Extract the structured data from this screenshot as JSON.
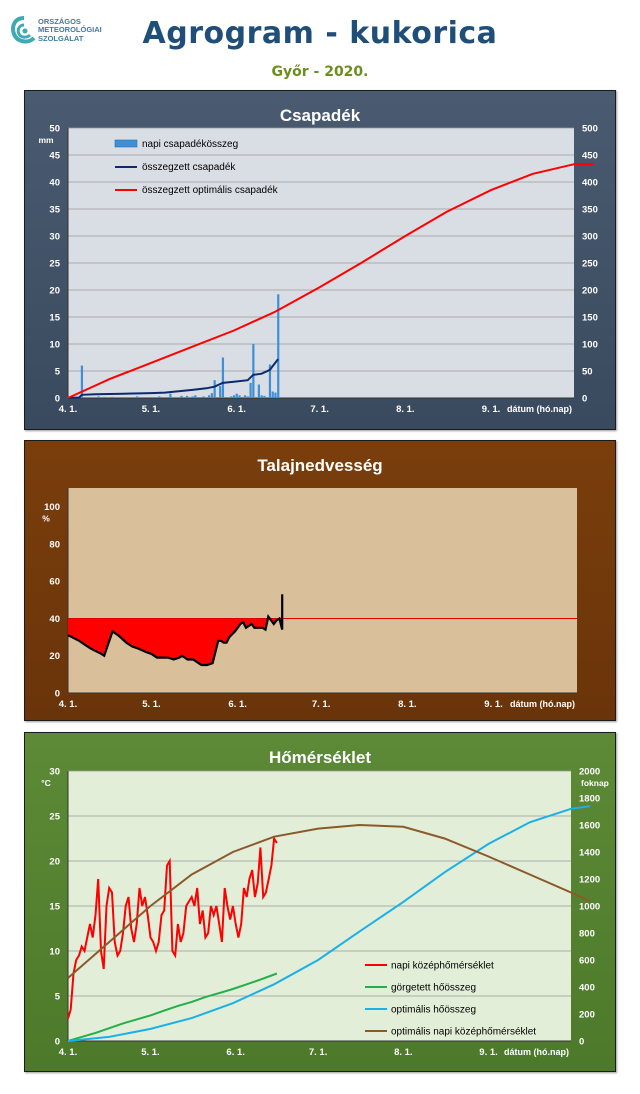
{
  "header": {
    "title": "Agrogram - kukorica",
    "subtitle": "Győr - 2020.",
    "logo_lines": [
      "ORSZÁGOS",
      "METEOROLÓGIAI",
      "SZOLGÁLAT"
    ]
  },
  "colors": {
    "title_blue": "#1f4e79",
    "subtitle_green": "#6a8f1e",
    "panel_precip": "#44546a",
    "panel_soil": "#7a3e0c",
    "panel_temp": "#548235",
    "daily_bar": "#3d8fd6",
    "cum_line": "#0b2a6f",
    "opt_line_red": "#ff0000",
    "soil_line": "#000000",
    "temp_red": "#ff0000",
    "temp_green": "#22b04a",
    "temp_cyan": "#1ab0e8",
    "temp_brown": "#8b5a2b"
  },
  "chart_data": [
    {
      "type": "bar",
      "title": "Csapadék",
      "xlabel": "dátum (hó.nap)",
      "ylabel": "mm",
      "x_ticks": [
        "4. 1.",
        "5. 1.",
        "6. 1.",
        "7. 1.",
        "8. 1.",
        "9. 1."
      ],
      "ylim": [
        0,
        50
      ],
      "y_ticks": [
        0,
        5,
        10,
        15,
        20,
        25,
        30,
        35,
        40,
        45,
        50
      ],
      "y2lim": [
        0,
        500
      ],
      "y2_ticks": [
        0,
        50,
        100,
        150,
        200,
        250,
        300,
        350,
        400,
        450,
        500
      ],
      "grid": true,
      "legend_position": "top-left",
      "series": [
        {
          "name": "napi csapadékösszeg",
          "kind": "bar",
          "axis": "left",
          "x": [
            0,
            5,
            11,
            13,
            16,
            25,
            33,
            37,
            41,
            43,
            45,
            46,
            49,
            51,
            52,
            53,
            55,
            56,
            59,
            60,
            61,
            62,
            63,
            64,
            65,
            66,
            67,
            69,
            70,
            71,
            73,
            74,
            75,
            76
          ],
          "values": [
            0.1,
            6.0,
            0.3,
            0.2,
            0.2,
            0.3,
            0.3,
            0.8,
            0.4,
            0.4,
            0.3,
            0.5,
            0.3,
            0.5,
            0.9,
            3.3,
            2.2,
            7.5,
            0.3,
            0.5,
            0.8,
            0.5,
            0.2,
            0.5,
            0.3,
            2.8,
            10.0,
            2.5,
            0.5,
            0.4,
            6.2,
            1.2,
            1.0,
            19.2
          ]
        },
        {
          "name": "összegzett csapadék",
          "kind": "line",
          "axis": "left",
          "x": [
            0,
            4,
            5,
            10,
            20,
            30,
            35,
            45,
            50,
            53,
            56,
            60,
            65,
            67,
            70,
            73,
            76
          ],
          "values": [
            0,
            0.1,
            0.6,
            0.7,
            0.8,
            0.9,
            1.0,
            1.5,
            1.8,
            2.1,
            2.8,
            3.0,
            3.3,
            4.3,
            4.5,
            5.2,
            7.2
          ]
        },
        {
          "name": "összegzett optimális csapadék",
          "kind": "line",
          "axis": "right",
          "x": [
            0,
            15,
            30,
            45,
            60,
            75,
            91,
            106,
            122,
            137,
            153,
            168,
            183,
            190
          ],
          "values": [
            0,
            35,
            65,
            95,
            125,
            160,
            205,
            250,
            300,
            345,
            385,
            415,
            433,
            433
          ]
        }
      ]
    },
    {
      "type": "area",
      "title": "Talajnedvesség",
      "xlabel": "dátum (hó.nap)",
      "ylabel": "%",
      "x_ticks": [
        "4. 1.",
        "5. 1.",
        "6. 1.",
        "7. 1.",
        "8. 1.",
        "9. 1."
      ],
      "ylim": [
        0,
        110
      ],
      "y_ticks": [
        0,
        20,
        40,
        60,
        80,
        100
      ],
      "grid": false,
      "threshold": 40,
      "series": [
        {
          "name": "",
          "x": [
            0,
            4,
            8,
            12,
            13,
            16,
            18,
            21,
            23,
            25,
            28,
            30,
            32,
            34,
            36,
            38,
            40,
            41,
            43,
            45,
            47,
            48,
            50,
            52,
            54,
            55,
            56,
            57,
            58,
            60,
            62,
            63,
            64,
            66,
            67,
            68,
            70,
            71,
            72,
            74,
            75,
            76,
            77
          ],
          "values": [
            31,
            28,
            24,
            21,
            20,
            33,
            31,
            27,
            25,
            24,
            22,
            21,
            19,
            19,
            19,
            18,
            19,
            20,
            18,
            18,
            16,
            15,
            15,
            16,
            28,
            28,
            27,
            27,
            30,
            33,
            37,
            38,
            35,
            37,
            35,
            35,
            35,
            34,
            41,
            37,
            39,
            40,
            34
          ]
        }
      ],
      "end_value": 53
    },
    {
      "type": "line",
      "title": "Hőmérséklet",
      "xlabel": "dátum (hó.nap)",
      "ylabel": "°C",
      "y2label": "foknap",
      "x_ticks": [
        "4. 1.",
        "5. 1.",
        "6. 1.",
        "7. 1.",
        "8. 1.",
        "9. 1."
      ],
      "ylim": [
        0,
        30
      ],
      "y_ticks": [
        0,
        5,
        10,
        15,
        20,
        25,
        30
      ],
      "y2lim": [
        0,
        2000
      ],
      "y2_ticks": [
        0,
        200,
        400,
        600,
        800,
        1000,
        1200,
        1400,
        1600,
        1800,
        2000
      ],
      "grid": true,
      "legend_position": "bottom-right",
      "series": [
        {
          "name": "napi középhőmérséklet",
          "axis": "left",
          "x": [
            0,
            1,
            2,
            3,
            4,
            5,
            6,
            7,
            8,
            9,
            10,
            11,
            12,
            13,
            14,
            15,
            16,
            17,
            18,
            19,
            20,
            21,
            22,
            23,
            24,
            25,
            26,
            27,
            28,
            29,
            30,
            31,
            32,
            33,
            34,
            35,
            36,
            37,
            38,
            39,
            40,
            41,
            42,
            43,
            44,
            45,
            46,
            47,
            48,
            49,
            50,
            51,
            52,
            53,
            54,
            55,
            56,
            57,
            58,
            59,
            60,
            61,
            62,
            63,
            64,
            65,
            66,
            67,
            68,
            69,
            70,
            71,
            72,
            73,
            74,
            75,
            76
          ],
          "values": [
            2.5,
            3.5,
            7.5,
            9,
            9.5,
            10.5,
            10,
            11.5,
            13,
            11.5,
            14,
            18,
            10,
            8,
            15,
            17,
            16.5,
            11,
            9.5,
            10,
            12,
            15,
            16,
            12.5,
            11,
            13,
            17,
            15,
            16,
            14,
            11.5,
            11,
            10,
            11,
            14,
            14.5,
            19.5,
            20,
            10,
            9.5,
            13,
            11,
            12,
            15,
            15.5,
            16,
            15,
            17,
            13,
            14.5,
            11.5,
            12,
            15,
            14,
            15,
            13,
            11,
            17,
            15,
            13.5,
            15,
            13,
            11.5,
            13,
            17,
            16,
            18,
            19,
            16,
            17.5,
            21.5,
            16,
            16.5,
            18,
            19.5,
            22.5,
            22
          ]
        },
        {
          "name": "görgetett hőösszeg",
          "axis": "right",
          "x": [
            0,
            5,
            10,
            15,
            20,
            25,
            30,
            35,
            40,
            45,
            50,
            55,
            60,
            65,
            70,
            76
          ],
          "values": [
            0,
            30,
            60,
            95,
            130,
            160,
            190,
            225,
            260,
            290,
            325,
            355,
            385,
            420,
            455,
            500
          ]
        },
        {
          "name": "optimális hőösszeg",
          "axis": "right",
          "x": [
            0,
            15,
            30,
            45,
            60,
            75,
            91,
            106,
            122,
            137,
            153,
            168,
            183,
            190
          ],
          "values": [
            0,
            30,
            90,
            170,
            280,
            420,
            600,
            810,
            1030,
            1250,
            1460,
            1620,
            1720,
            1740
          ]
        },
        {
          "name": "optimális napi középhőmérséklet",
          "axis": "left",
          "x": [
            0,
            15,
            30,
            45,
            60,
            75,
            91,
            106,
            122,
            137,
            153,
            168,
            183,
            190
          ],
          "values": [
            7,
            11,
            15,
            18.5,
            21,
            22.7,
            23.6,
            24,
            23.8,
            22.5,
            20.5,
            18.5,
            16.5,
            15.5
          ]
        }
      ]
    }
  ]
}
